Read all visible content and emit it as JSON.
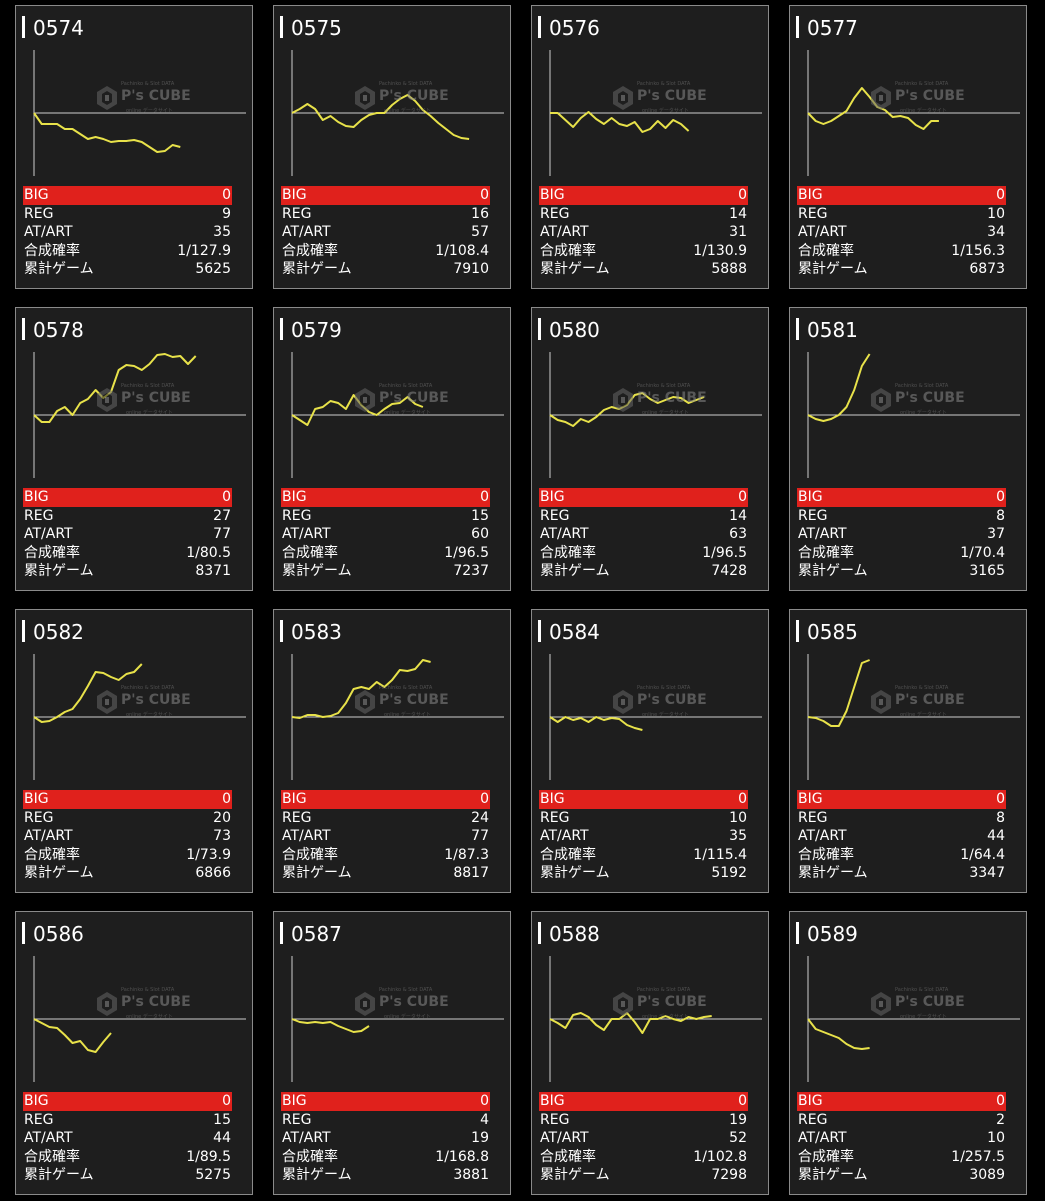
{
  "labels": {
    "big": "BIG",
    "reg": "REG",
    "at": "AT/ART",
    "prob": "合成確率",
    "games": "累計ゲーム"
  },
  "watermark": {
    "brand": "P's CUBE",
    "line1": "Pachinko & Slot DATA",
    "line2": "online データサイト"
  },
  "colors": {
    "line": "#e8e24a",
    "big_bg": "#e0211c",
    "panel": "#1e1e1e",
    "border": "#8a8a8a"
  },
  "machines": [
    {
      "id": "0574",
      "big": "0",
      "reg": "9",
      "at": "35",
      "prob": "1/127.9",
      "games": "5625",
      "chart_data": {
        "type": "line",
        "y": [
          0,
          -11,
          -11,
          -11,
          -16,
          -16,
          -21,
          -26,
          -24,
          -26,
          -29,
          -28,
          -28,
          -27,
          -29,
          -34,
          -39,
          -38,
          -32,
          -34
        ]
      }
    },
    {
      "id": "0575",
      "big": "0",
      "reg": "16",
      "at": "57",
      "prob": "1/108.4",
      "games": "7910",
      "chart_data": {
        "type": "line",
        "y": [
          0,
          4,
          9,
          4,
          -7,
          -3,
          -9,
          -13,
          -14,
          -7,
          -2,
          0,
          0,
          8,
          14,
          18,
          12,
          3,
          -3,
          -10,
          -16,
          -22,
          -25,
          -26
        ]
      }
    },
    {
      "id": "0576",
      "big": "0",
      "reg": "14",
      "at": "31",
      "prob": "1/130.9",
      "games": "5888",
      "chart_data": {
        "type": "line",
        "y": [
          0,
          0,
          -7,
          -14,
          -5,
          1,
          -6,
          -11,
          -5,
          -11,
          -13,
          -9,
          -19,
          -16,
          -8,
          -15,
          -7,
          -11,
          -18
        ]
      }
    },
    {
      "id": "0577",
      "big": "0",
      "reg": "10",
      "at": "34",
      "prob": "1/156.3",
      "games": "6873",
      "chart_data": {
        "type": "line",
        "y": [
          0,
          -8,
          -11,
          -8,
          -3,
          2,
          15,
          25,
          16,
          6,
          3,
          -4,
          -3,
          -5,
          -12,
          -16,
          -8,
          -8
        ]
      }
    },
    {
      "id": "0578",
      "big": "0",
      "reg": "27",
      "at": "77",
      "prob": "1/80.5",
      "games": "8371",
      "chart_data": {
        "type": "line",
        "y": [
          0,
          -7,
          -7,
          4,
          8,
          0,
          12,
          16,
          25,
          17,
          23,
          45,
          50,
          49,
          45,
          51,
          60,
          61,
          58,
          59,
          51,
          59
        ]
      }
    },
    {
      "id": "0579",
      "big": "0",
      "reg": "15",
      "at": "60",
      "prob": "1/96.5",
      "games": "7237",
      "chart_data": {
        "type": "line",
        "y": [
          0,
          -5,
          -10,
          6,
          8,
          14,
          12,
          6,
          20,
          10,
          3,
          0,
          6,
          11,
          12,
          18,
          11,
          8
        ]
      }
    },
    {
      "id": "0580",
      "big": "0",
      "reg": "14",
      "at": "63",
      "prob": "1/96.5",
      "games": "7428",
      "chart_data": {
        "type": "line",
        "y": [
          0,
          -5,
          -7,
          -11,
          -4,
          -7,
          -2,
          5,
          8,
          6,
          10,
          20,
          22,
          16,
          12,
          15,
          18,
          17,
          12,
          15,
          18
        ]
      }
    },
    {
      "id": "0581",
      "big": "0",
      "reg": "8",
      "at": "37",
      "prob": "1/70.4",
      "games": "3165",
      "chart_data": {
        "type": "line",
        "y": [
          0,
          -4,
          -6,
          -4,
          0,
          8,
          25,
          49,
          61
        ]
      }
    },
    {
      "id": "0582",
      "big": "0",
      "reg": "20",
      "at": "73",
      "prob": "1/73.9",
      "games": "6866",
      "chart_data": {
        "type": "line",
        "y": [
          0,
          -5,
          -4,
          0,
          5,
          8,
          18,
          31,
          45,
          44,
          40,
          37,
          43,
          45,
          53
        ]
      }
    },
    {
      "id": "0583",
      "big": "0",
      "reg": "24",
      "at": "77",
      "prob": "1/87.3",
      "games": "8817",
      "chart_data": {
        "type": "line",
        "y": [
          0,
          -1,
          2,
          2,
          0,
          1,
          4,
          14,
          28,
          30,
          28,
          35,
          30,
          37,
          47,
          46,
          48,
          57,
          55
        ]
      }
    },
    {
      "id": "0584",
      "big": "0",
      "reg": "10",
      "at": "35",
      "prob": "1/115.4",
      "games": "5192",
      "chart_data": {
        "type": "line",
        "y": [
          0,
          -5,
          0,
          -3,
          -1,
          -5,
          0,
          -3,
          -1,
          -2,
          -8,
          -11,
          -13
        ]
      }
    },
    {
      "id": "0585",
      "big": "0",
      "reg": "8",
      "at": "44",
      "prob": "1/64.4",
      "games": "3347",
      "chart_data": {
        "type": "line",
        "y": [
          0,
          -1,
          -4,
          -9,
          -9,
          6,
          30,
          54,
          57
        ]
      }
    },
    {
      "id": "0586",
      "big": "0",
      "reg": "15",
      "at": "44",
      "prob": "1/89.5",
      "games": "5275",
      "chart_data": {
        "type": "line",
        "y": [
          0,
          -4,
          -8,
          -9,
          -16,
          -24,
          -22,
          -31,
          -33,
          -23,
          -14
        ]
      }
    },
    {
      "id": "0587",
      "big": "0",
      "reg": "4",
      "at": "19",
      "prob": "1/168.8",
      "games": "3881",
      "chart_data": {
        "type": "line",
        "y": [
          0,
          -3,
          -4,
          -3,
          -4,
          -3,
          -7,
          -10,
          -13,
          -12,
          -7
        ]
      }
    },
    {
      "id": "0588",
      "big": "0",
      "reg": "19",
      "at": "52",
      "prob": "1/102.8",
      "games": "7298",
      "chart_data": {
        "type": "line",
        "y": [
          0,
          -4,
          -9,
          4,
          6,
          2,
          -6,
          -11,
          0,
          0,
          6,
          -3,
          -14,
          0,
          0,
          3,
          0,
          -2,
          2,
          0,
          2,
          3
        ]
      }
    },
    {
      "id": "0589",
      "big": "0",
      "reg": "2",
      "at": "10",
      "prob": "1/257.5",
      "games": "3089",
      "chart_data": {
        "type": "line",
        "y": [
          0,
          -10,
          -13,
          -16,
          -19,
          -25,
          -29,
          -30,
          -29
        ]
      }
    }
  ]
}
